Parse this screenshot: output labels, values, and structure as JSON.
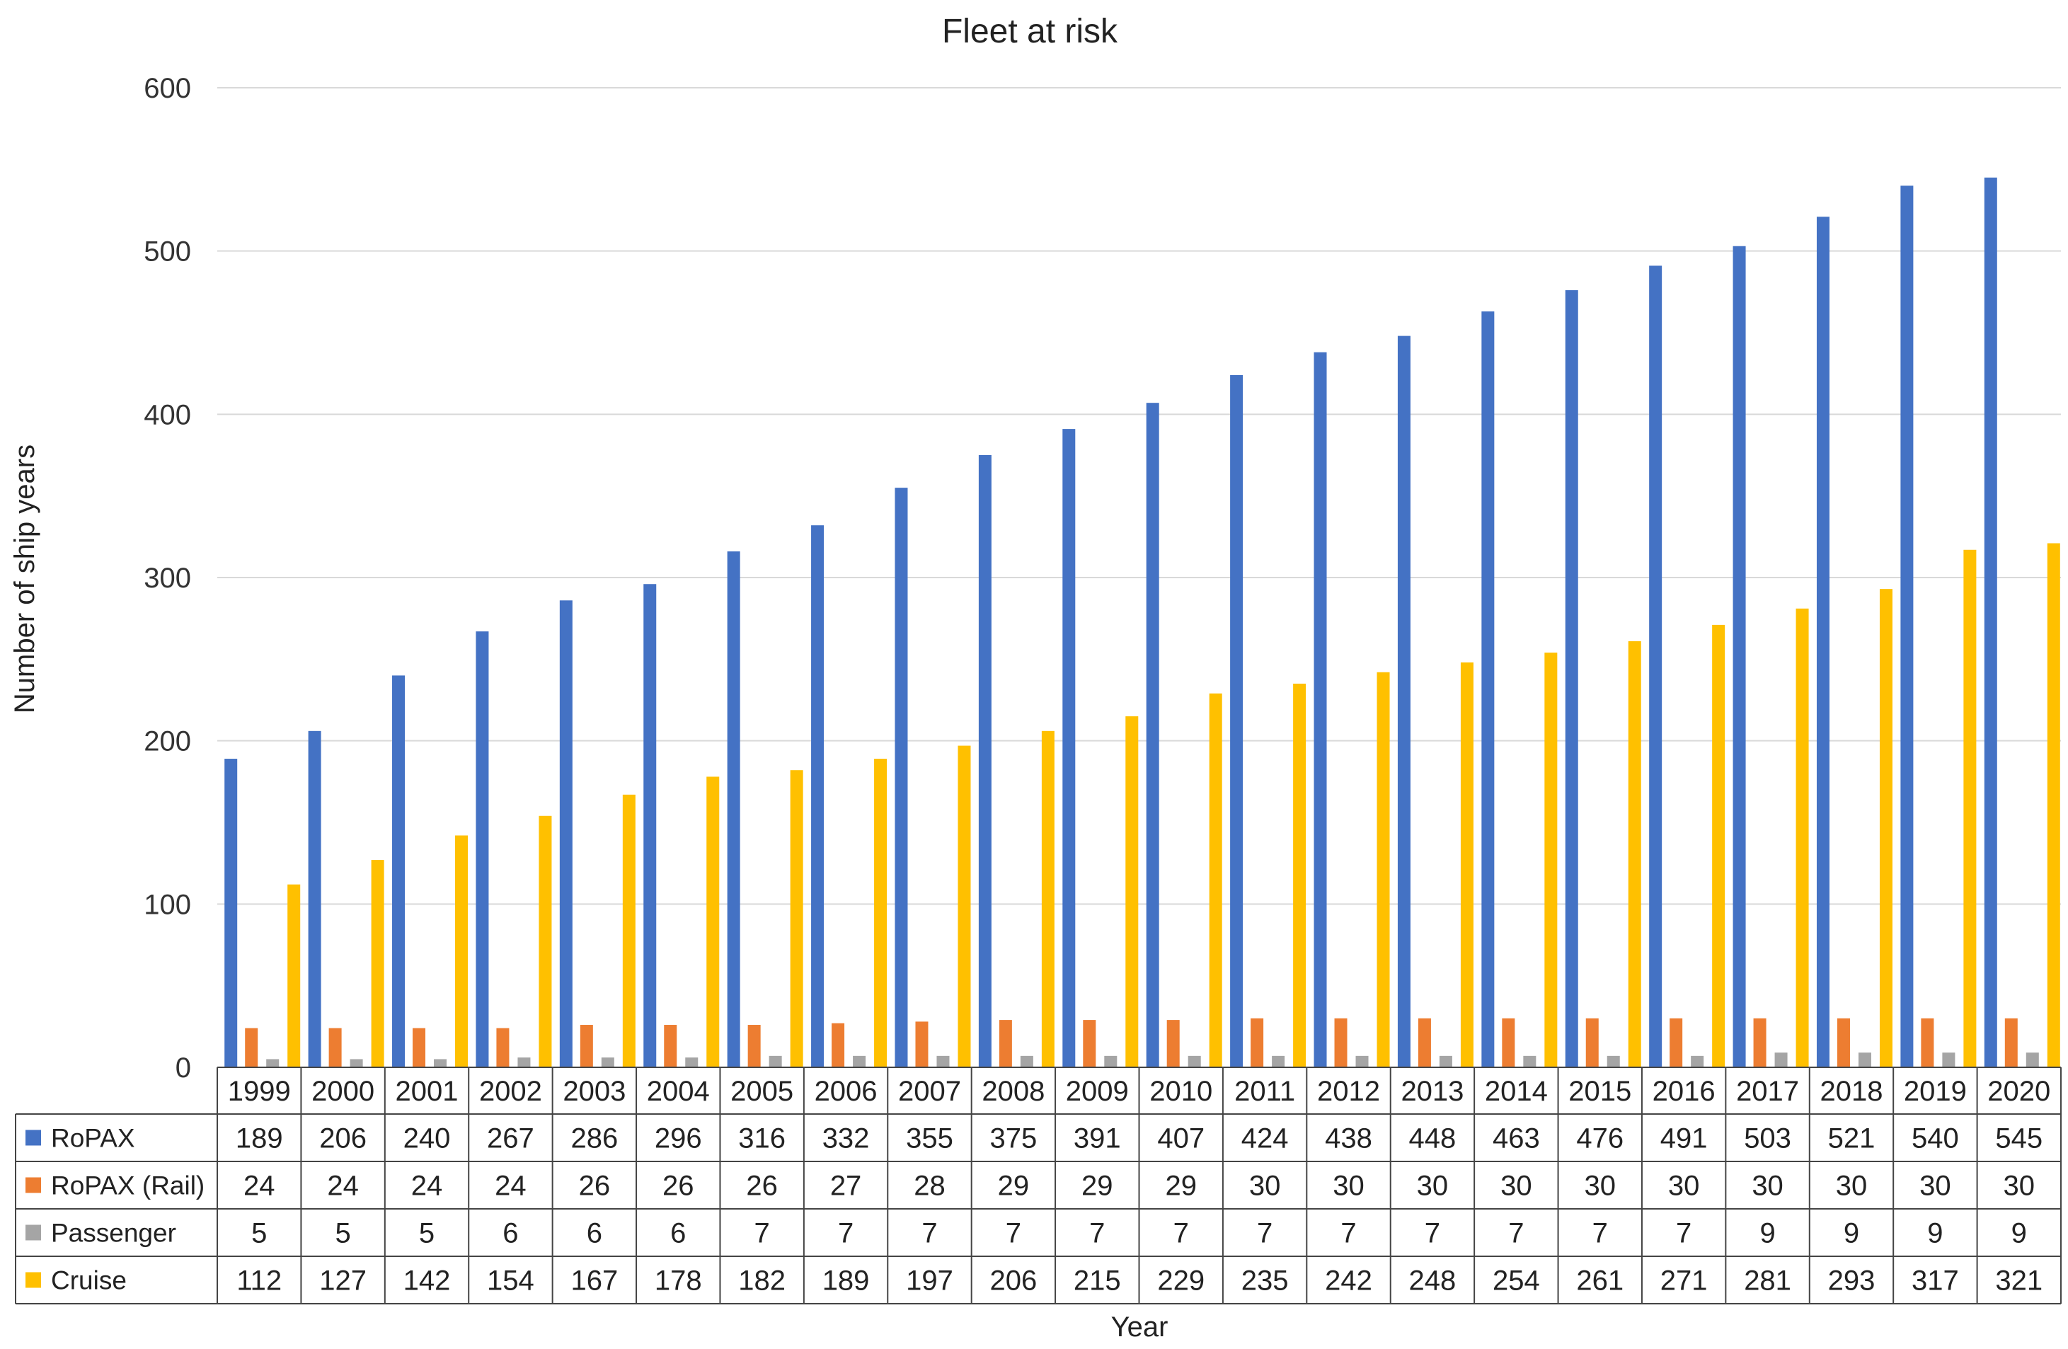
{
  "chart_data": {
    "type": "bar",
    "title": "Fleet at risk",
    "xlabel": "Year",
    "ylabel": "Number of ship years",
    "ylim": [
      0,
      600
    ],
    "yticks": [
      0,
      100,
      200,
      300,
      400,
      500,
      600
    ],
    "grid": true,
    "legend": "data table rows",
    "categories": [
      "1999",
      "2000",
      "2001",
      "2002",
      "2003",
      "2004",
      "2005",
      "2006",
      "2007",
      "2008",
      "2009",
      "2010",
      "2011",
      "2012",
      "2013",
      "2014",
      "2015",
      "2016",
      "2017",
      "2018",
      "2019",
      "2020"
    ],
    "series": [
      {
        "name": "RoPAX",
        "color": "#4472C4",
        "values": [
          189,
          206,
          240,
          267,
          286,
          296,
          316,
          332,
          355,
          375,
          391,
          407,
          424,
          438,
          448,
          463,
          476,
          491,
          503,
          521,
          540,
          545
        ]
      },
      {
        "name": "RoPAX (Rail)",
        "color": "#ED7D31",
        "values": [
          24,
          24,
          24,
          24,
          26,
          26,
          26,
          27,
          28,
          29,
          29,
          29,
          30,
          30,
          30,
          30,
          30,
          30,
          30,
          30,
          30,
          30
        ]
      },
      {
        "name": "Passenger",
        "color": "#A5A5A5",
        "values": [
          5,
          5,
          5,
          6,
          6,
          6,
          7,
          7,
          7,
          7,
          7,
          7,
          7,
          7,
          7,
          7,
          7,
          7,
          9,
          9,
          9,
          9
        ]
      },
      {
        "name": "Cruise",
        "color": "#FFC000",
        "values": [
          112,
          127,
          142,
          154,
          167,
          178,
          182,
          189,
          197,
          206,
          215,
          229,
          235,
          242,
          248,
          254,
          261,
          271,
          281,
          293,
          317,
          321
        ]
      }
    ]
  }
}
